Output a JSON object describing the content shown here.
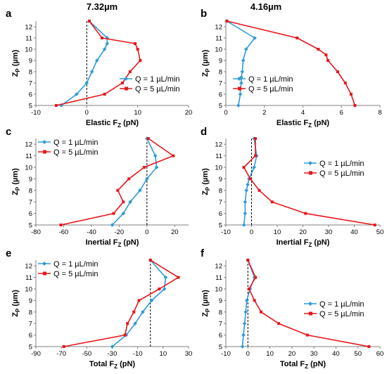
{
  "figure": {
    "column_titles": [
      "7.32µm",
      "4.16µm"
    ]
  },
  "colors": {
    "series_1": "#2e9bd6",
    "series_2": "#e8161b",
    "axis": "#808080",
    "text": "#000000",
    "zero_line": "#000000"
  },
  "chart_data": [
    {
      "panel": "a",
      "type": "line",
      "grid": false,
      "legend": "bottom-right",
      "xlabel": "Elastic F",
      "xsub": "Z",
      "xunit": " (pN)",
      "ylabel": "Z",
      "ysub": "P",
      "yunit": " (µm)",
      "xlim": [
        -10,
        20
      ],
      "xticks": [
        -10,
        0,
        10,
        20
      ],
      "ylim": [
        5,
        12.5
      ],
      "yticks": [
        5,
        6,
        7,
        8,
        9,
        10,
        11,
        12
      ],
      "zero_line": 0,
      "series": [
        {
          "name": "Q = 1 µL/min",
          "x": [
            -5,
            -2,
            0,
            1,
            2,
            3.5,
            4,
            4,
            0.5
          ],
          "y": [
            5,
            6,
            7,
            8,
            9,
            10,
            10.5,
            11,
            12.5
          ]
        },
        {
          "name": "Q = 5 µL/min",
          "x": [
            -6,
            3.5,
            7,
            8.5,
            10.5,
            10,
            9.5,
            3,
            0.5
          ],
          "y": [
            5,
            6,
            7,
            8,
            9,
            10,
            10.5,
            11,
            12.5
          ]
        }
      ]
    },
    {
      "panel": "b",
      "type": "line",
      "grid": false,
      "legend": "middle-left",
      "xlabel": "Elastic F",
      "xsub": "Z",
      "xunit": " (pN)",
      "ylabel": "Z",
      "ysub": "P",
      "yunit": " (µm)",
      "xlim": [
        0,
        8
      ],
      "xticks": [
        0,
        2,
        4,
        6,
        8
      ],
      "ylim": [
        5,
        12.5
      ],
      "yticks": [
        5,
        6,
        7,
        8,
        9,
        10,
        11,
        12
      ],
      "series": [
        {
          "name": "Q = 1 µL/min",
          "x": [
            0.65,
            0.75,
            0.75,
            0.8,
            0.8,
            0.85,
            0.9,
            1.05,
            1.5,
            0.05
          ],
          "y": [
            5,
            6,
            6.5,
            7,
            7.5,
            8,
            9,
            10,
            11,
            12.5
          ]
        },
        {
          "name": "Q = 5 µL/min",
          "x": [
            6.7,
            6.5,
            6.2,
            5.8,
            5.3,
            5.2,
            4.8,
            3.7,
            0.05
          ],
          "y": [
            5,
            6,
            7,
            8,
            9,
            9.5,
            10,
            11,
            12.5
          ]
        }
      ]
    },
    {
      "panel": "c",
      "type": "line",
      "grid": false,
      "legend": "top-left",
      "xlabel": "Inertial F",
      "xsub": "Z",
      "xunit": " (pN)",
      "ylabel": "Z",
      "ysub": "P",
      "yunit": " (µm)",
      "xlim": [
        -80,
        30
      ],
      "xticks": [
        -80,
        -60,
        -40,
        -20,
        0,
        20
      ],
      "ylim": [
        5,
        12.5
      ],
      "yticks": [
        5,
        6,
        7,
        8,
        9,
        10,
        11,
        12
      ],
      "zero_line": 0,
      "series": [
        {
          "name": "Q = 1 µL/min",
          "x": [
            -25,
            -17,
            -12,
            -5,
            0,
            7,
            6,
            0
          ],
          "y": [
            5,
            6,
            7,
            8,
            9,
            10,
            11,
            12.5
          ]
        },
        {
          "name": "Q = 5 µL/min",
          "x": [
            -62,
            -24,
            -17,
            -21,
            -13,
            -2,
            19,
            1
          ],
          "y": [
            5,
            6,
            7,
            8,
            9,
            10,
            11,
            12.5
          ]
        }
      ]
    },
    {
      "panel": "d",
      "type": "line",
      "grid": false,
      "legend": "middle-right",
      "xlabel": "Inertial F",
      "xsub": "Z",
      "xunit": " (pN)",
      "ylabel": "Z",
      "ysub": "P",
      "yunit": " (µm)",
      "xlim": [
        -10,
        50
      ],
      "xticks": [
        -10,
        0,
        10,
        20,
        30,
        40,
        50
      ],
      "ylim": [
        5,
        12.5
      ],
      "yticks": [
        5,
        6,
        7,
        8,
        9,
        10,
        11,
        12
      ],
      "zero_line": 0,
      "series": [
        {
          "name": "Q = 1 µL/min",
          "x": [
            -3,
            -2.5,
            -2.5,
            -2,
            -1.5,
            -1,
            1,
            2,
            1
          ],
          "y": [
            5,
            6,
            7,
            8,
            8.5,
            9,
            10,
            11,
            12.5
          ]
        },
        {
          "name": "Q = 5 µL/min",
          "x": [
            48,
            21,
            8,
            3,
            -0.5,
            -3,
            1.5,
            1.5
          ],
          "y": [
            5,
            6,
            7,
            8,
            9,
            10,
            11,
            12.5
          ]
        }
      ]
    },
    {
      "panel": "e",
      "type": "line",
      "grid": false,
      "legend": "top-left",
      "xlabel": "Total F",
      "xsub": "Z",
      "xunit": " (pN)",
      "ylabel": "Z",
      "ysub": "P",
      "yunit": " (µm)",
      "xlim": [
        -90,
        30
      ],
      "xticks": [
        -90,
        -70,
        -50,
        -30,
        -10,
        10,
        30
      ],
      "ylim": [
        5,
        12.5
      ],
      "yticks": [
        5,
        6,
        7,
        8,
        9,
        10,
        11,
        12
      ],
      "zero_line": 0,
      "series": [
        {
          "name": "Q = 1 µL/min",
          "x": [
            -30,
            -19,
            -12,
            -6,
            1,
            11,
            12,
            0
          ],
          "y": [
            5,
            6,
            7,
            8,
            9,
            10,
            11,
            12.5
          ]
        },
        {
          "name": "Q = 5 µL/min",
          "x": [
            -68,
            -20,
            -18,
            -13,
            -9,
            7,
            22,
            0
          ],
          "y": [
            5,
            6,
            7,
            8,
            9,
            10,
            11,
            12.5
          ]
        }
      ]
    },
    {
      "panel": "f",
      "type": "line",
      "grid": false,
      "legend": "middle-right",
      "xlabel": "Total F",
      "xsub": "Z",
      "xunit": " (pN)",
      "ylabel": "Z",
      "ysub": "P",
      "yunit": " (µm)",
      "xlim": [
        -10,
        60
      ],
      "xticks": [
        -10,
        0,
        10,
        20,
        30,
        40,
        50,
        60
      ],
      "ylim": [
        5,
        12.5
      ],
      "yticks": [
        5,
        6,
        7,
        8,
        9,
        10,
        11,
        12
      ],
      "zero_line": 0,
      "series": [
        {
          "name": "Q = 1 µL/min",
          "x": [
            -2.5,
            -2,
            -1.5,
            -1,
            -0.5,
            1,
            3,
            0
          ],
          "y": [
            5,
            6,
            7,
            8,
            9,
            10,
            11,
            12.5
          ]
        },
        {
          "name": "Q = 5 µL/min",
          "x": [
            55,
            27,
            14,
            6,
            3,
            0.5,
            3.5,
            0
          ],
          "y": [
            5,
            6,
            7,
            8,
            9,
            10,
            11,
            12.5
          ]
        }
      ]
    }
  ]
}
